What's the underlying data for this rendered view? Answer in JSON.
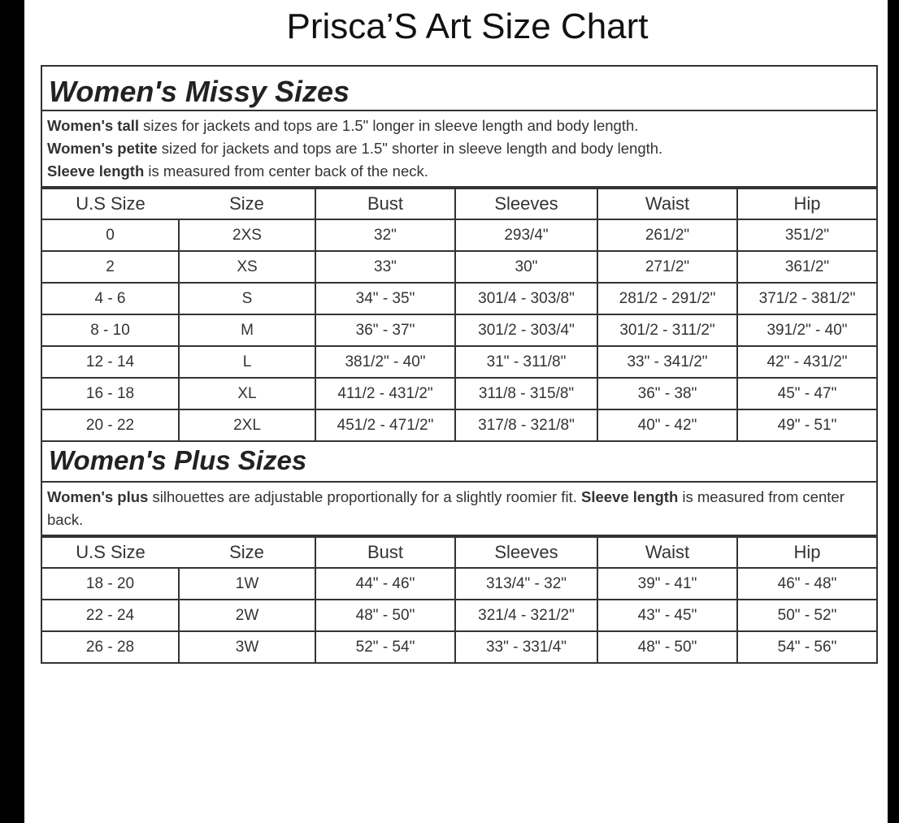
{
  "title": "Prisca’S Art Size Chart",
  "missy": {
    "heading": "Women's Missy Sizes",
    "notes": [
      {
        "bold": "Women's tall",
        "text": " sizes for jackets and tops are 1.5\" longer in sleeve length and body length."
      },
      {
        "bold": "Women's petite",
        "text": " sized for jackets and tops are 1.5\" shorter in sleeve length and body length."
      },
      {
        "bold": "Sleeve length",
        "text": " is measured from center back of the neck."
      }
    ],
    "columns": [
      "U.S Size",
      "Size",
      "Bust",
      "Sleeves",
      "Waist",
      "Hip"
    ],
    "rows": [
      [
        "0",
        "2XS",
        "32\"",
        "293/4\"",
        "261/2\"",
        "351/2\""
      ],
      [
        "2",
        "XS",
        "33\"",
        "30\"",
        "271/2\"",
        "361/2\""
      ],
      [
        "4 - 6",
        "S",
        "34\" - 35\"",
        "301/4 - 303/8\"",
        "281/2 - 291/2\"",
        "371/2 - 381/2\""
      ],
      [
        "8 - 10",
        "M",
        "36\" - 37\"",
        "301/2 - 303/4\"",
        "301/2 - 311/2\"",
        "391/2\" - 40\""
      ],
      [
        "12 - 14",
        "L",
        "381/2\" - 40\"",
        "31\" - 311/8\"",
        "33\" - 341/2\"",
        "42\" - 431/2\""
      ],
      [
        "16 - 18",
        "XL",
        "411/2 - 431/2\"",
        "311/8 - 315/8\"",
        "36\" - 38\"",
        "45\" - 47\""
      ],
      [
        "20 - 22",
        "2XL",
        "451/2 - 471/2\"",
        "317/8 - 321/8\"",
        "40\" - 42\"",
        "49\" - 51\""
      ]
    ]
  },
  "plus": {
    "heading": "Women's Plus Sizes",
    "note": {
      "bold1": "Women's plus",
      "text1": " silhouettes are adjustable proportionally for a slightly roomier fit. ",
      "bold2": "Sleeve length",
      "text2": " is measured from center back."
    },
    "columns": [
      "U.S Size",
      "Size",
      "Bust",
      "Sleeves",
      "Waist",
      "Hip"
    ],
    "rows": [
      [
        "18 - 20",
        "1W",
        "44\" - 46\"",
        "313/4\" - 32\"",
        "39\" - 41\"",
        "46\" - 48\""
      ],
      [
        "22 - 24",
        "2W",
        "48\" - 50\"",
        "321/4 - 321/2\"",
        "43\" - 45\"",
        "50\" - 52\""
      ],
      [
        "26 - 28",
        "3W",
        "52\" - 54\"",
        "33\" - 331/4\"",
        "48\" - 50\"",
        "54\" - 56\""
      ]
    ]
  }
}
